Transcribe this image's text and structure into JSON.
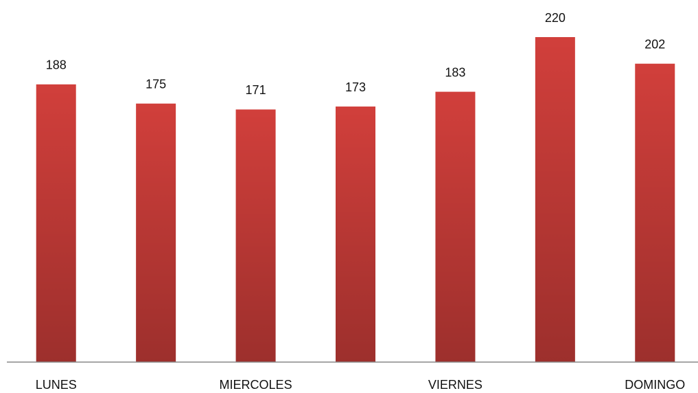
{
  "chart_data": {
    "type": "bar",
    "categories": [
      "LUNES",
      null,
      "MIERCOLES",
      null,
      "VIERNES",
      null,
      "DOMINGO"
    ],
    "values": [
      188,
      175,
      171,
      173,
      183,
      220,
      202
    ],
    "color": "#d13f3b",
    "ylim": [
      0,
      220
    ]
  }
}
